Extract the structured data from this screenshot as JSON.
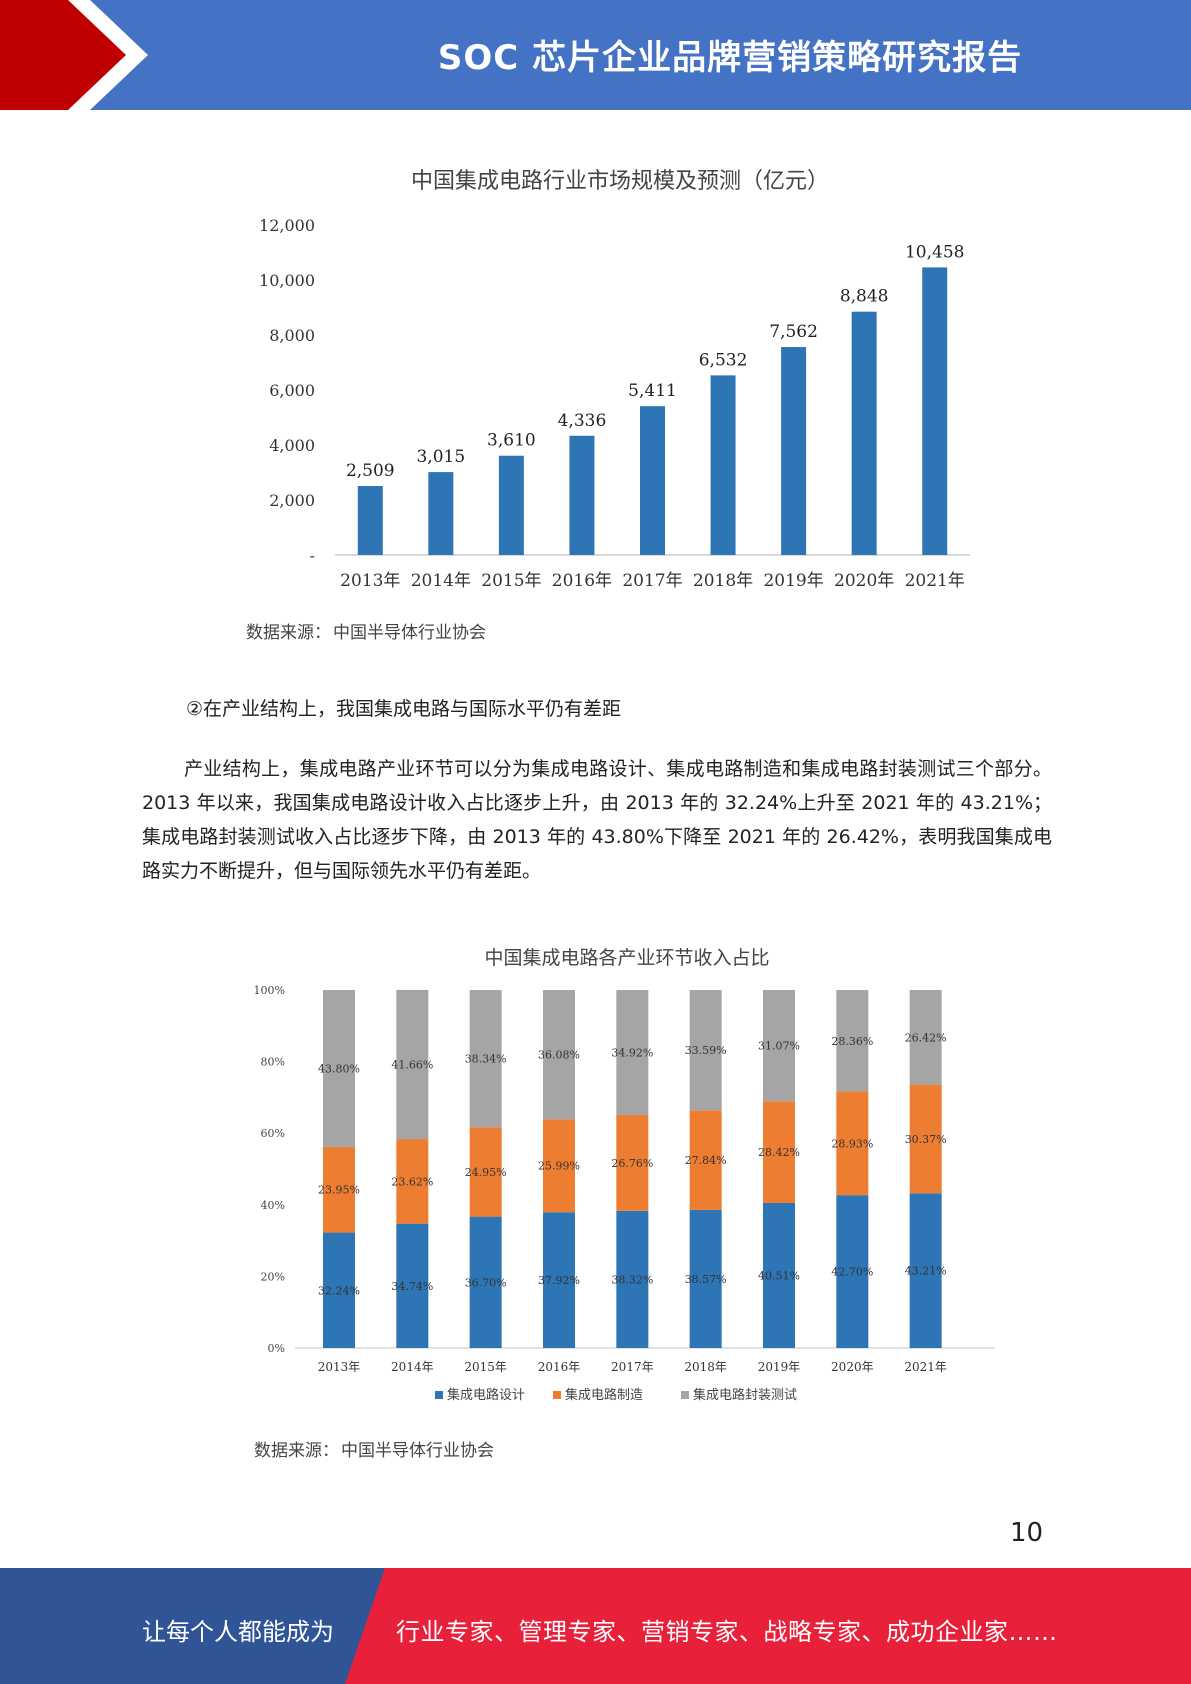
{
  "header": {
    "title": "SOC 芯片企业品牌营销策略研究报告",
    "colors": {
      "band": "#4472c4",
      "accent": "#c00000"
    }
  },
  "charts": {
    "market": {
      "source_label": "数据来源：",
      "source_name": "中国半导体行业协会"
    },
    "share": {
      "source_label": "数据来源：",
      "source_name": "中国半导体行业协会"
    }
  },
  "chart_data": [
    {
      "type": "bar",
      "title": "中国集成电路行业市场规模及预测（亿元）",
      "categories": [
        "2013年",
        "2014年",
        "2015年",
        "2016年",
        "2017年",
        "2018年",
        "2019年",
        "2020年",
        "2021年"
      ],
      "values": [
        2509,
        3015,
        3610,
        4336,
        5411,
        6532,
        7562,
        8848,
        10458
      ],
      "value_labels": [
        "2,509",
        "3,015",
        "3,610",
        "4,336",
        "5,411",
        "6,532",
        "7,562",
        "8,848",
        "10,458"
      ],
      "y_ticks": [
        0,
        2000,
        4000,
        6000,
        8000,
        10000,
        12000
      ],
      "y_tick_labels": [
        "-",
        "2,000",
        "4,000",
        "6,000",
        "8,000",
        "10,000",
        "12,000"
      ],
      "ylim": [
        0,
        12000
      ],
      "color": "#2e75b6",
      "grid": false
    },
    {
      "type": "bar",
      "stacked": true,
      "title": "中国集成电路各产业环节收入占比",
      "categories": [
        "2013年",
        "2014年",
        "2015年",
        "2016年",
        "2017年",
        "2018年",
        "2019年",
        "2020年",
        "2021年"
      ],
      "series": [
        {
          "name": "集成电路设计",
          "values": [
            32.24,
            34.74,
            36.7,
            37.92,
            38.32,
            38.57,
            40.51,
            42.7,
            43.21
          ],
          "labels": [
            "32.24%",
            "34.74%",
            "36.70%",
            "37.92%",
            "38.32%",
            "38.57%",
            "40.51%",
            "42.70%",
            "43.21%"
          ],
          "color": "#2e75b6"
        },
        {
          "name": "集成电路制造",
          "values": [
            23.95,
            23.62,
            24.95,
            25.99,
            26.76,
            27.84,
            28.42,
            28.93,
            30.37
          ],
          "labels": [
            "23.95%",
            "23.62%",
            "24.95%",
            "25.99%",
            "26.76%",
            "27.84%",
            "28.42%",
            "28.93%",
            "30.37%"
          ],
          "color": "#ed7d31"
        },
        {
          "name": "集成电路封装测试",
          "values": [
            43.8,
            41.66,
            38.34,
            36.08,
            34.92,
            33.59,
            31.07,
            28.36,
            26.42
          ],
          "labels": [
            "43.80%",
            "41.66%",
            "38.34%",
            "36.08%",
            "34.92%",
            "33.59%",
            "31.07%",
            "28.36%",
            "26.42%"
          ],
          "color": "#a5a5a5"
        }
      ],
      "y_ticks": [
        0,
        20,
        40,
        60,
        80,
        100
      ],
      "y_tick_labels": [
        "0%",
        "20%",
        "40%",
        "60%",
        "80%",
        "100%"
      ],
      "ylim": [
        0,
        100
      ],
      "legend_position": "bottom",
      "grid": false
    }
  ],
  "body": {
    "heading": "②在产业结构上，我国集成电路与国际水平仍有差距",
    "paragraph": "产业结构上，集成电路产业环节可以分为集成电路设计、集成电路制造和集成电路封装测试三个部分。2013 年以来，我国集成电路设计收入占比逐步上升，由 2013 年的 32.24%上升至 2021 年的 43.21%；集成电路封装测试收入占比逐步下降，由 2013 年的 43.80%下降至 2021 年的 26.42%，表明我国集成电路实力不断提升，但与国际领先水平仍有差距。"
  },
  "page_number": "10",
  "footer": {
    "left_text": "让每个人都能成为",
    "right_text": "行业专家、管理专家、营销专家、战略专家、成功企业家……",
    "colors": {
      "left": "#2f5597",
      "right": "#e8203a"
    }
  }
}
